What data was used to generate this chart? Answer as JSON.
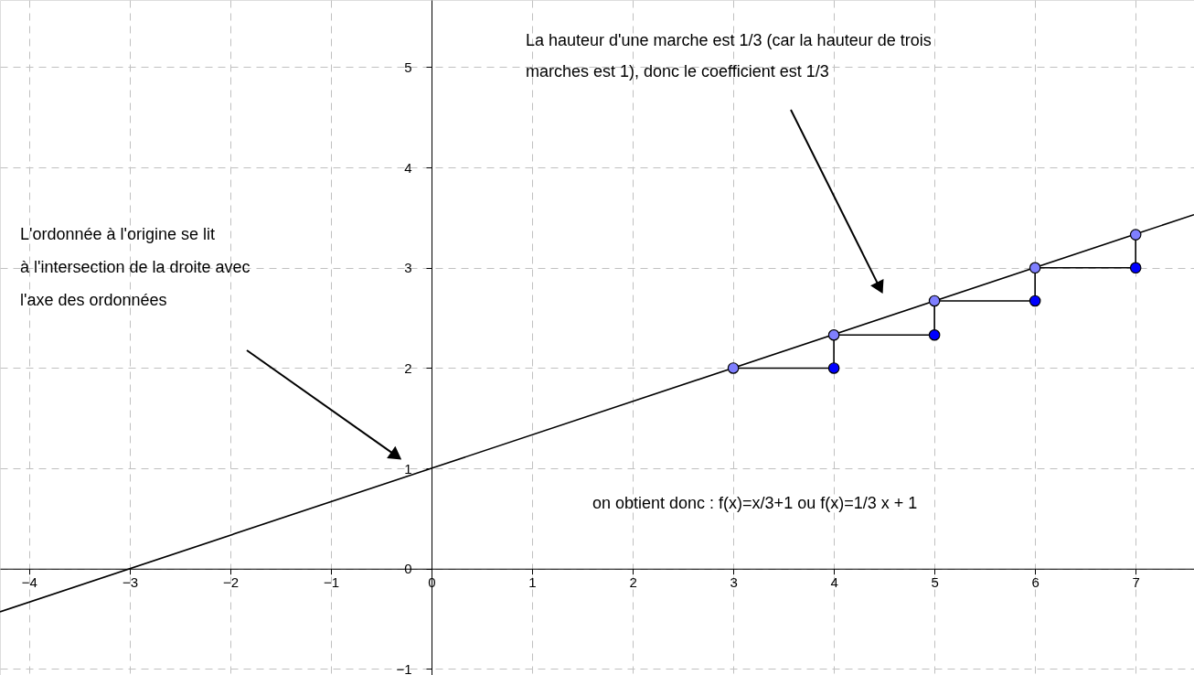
{
  "chart_data": {
    "type": "line",
    "xlim": [
      -4.29,
      7.58
    ],
    "ylim": [
      -1.06,
      5.67
    ],
    "xticks": [
      -4,
      -3,
      -2,
      -1,
      0,
      1,
      2,
      3,
      4,
      5,
      6,
      7
    ],
    "yticks": [
      -1,
      0,
      1,
      2,
      3,
      4,
      5
    ],
    "grid": true,
    "series": [
      {
        "color": "#000000",
        "marker": "none",
        "x": [
          -4.29,
          7.58
        ],
        "values": [
          -0.43,
          3.53
        ]
      },
      {
        "color": "#000000",
        "marker": "none",
        "x": [
          3,
          4,
          4,
          5,
          5,
          6,
          6,
          7,
          7
        ],
        "values": [
          2,
          2,
          2.33,
          2.33,
          2.67,
          2.67,
          3,
          3,
          3.33
        ]
      },
      {
        "type": "scatter",
        "color": "#7f7fff",
        "marker": "circle",
        "x": [
          3,
          4,
          5,
          6,
          7
        ],
        "values": [
          2,
          2.33,
          2.67,
          3,
          3.33
        ]
      },
      {
        "type": "scatter",
        "color": "#0000ff",
        "marker": "circle",
        "x": [
          4,
          5,
          6,
          7
        ],
        "values": [
          2,
          2.33,
          2.67,
          3
        ]
      }
    ],
    "annotations": [
      "La hauteur d'une marche est 1/3 (car la hauteur de trois\nmarches est 1), donc le coefficient est 1/3",
      "L'ordonnée à l'origine se lit\nà l'intersection de la droite avec\nl'axe des ordonnées",
      "on obtient donc : f(x)=x/3+1 ou f(x)=1/3 x + 1"
    ]
  }
}
